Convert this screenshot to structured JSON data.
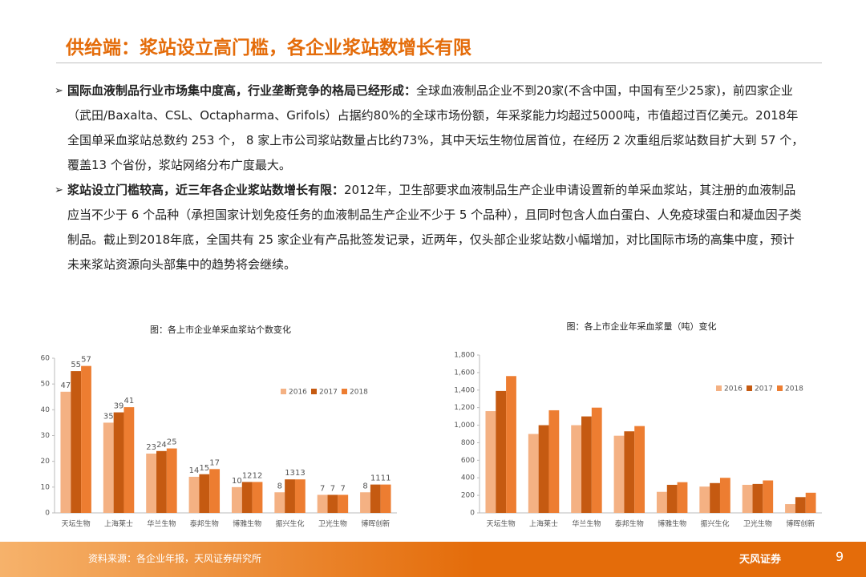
{
  "header": {
    "title": "供给端：浆站设立高门槛，各企业浆站数增长有限"
  },
  "bullets": [
    {
      "bold": "国际血液制品行业市场集中度高，行业垄断竞争的格局已经形成：",
      "text": "全球血液制品企业不到20家(不含中国，中国有至少25家)，前四家企业（武田/Baxalta、CSL、Octapharma、Grifols）占据约80%的全球市场份额，年采浆能力均超过5000吨，市值超过百亿美元。2018年全国单采血浆站总数约 253 个， 8 家上市公司浆站数量占比约73%，其中天坛生物位居首位，在经历 2 次重组后浆站数目扩大到 57 个，覆盖13 个省份，浆站网络分布广度最大。"
    },
    {
      "bold": "浆站设立门槛较高，近三年各企业浆站数增长有限：",
      "text": "2012年，卫生部要求血液制品生产企业申请设置新的单采血浆站，其注册的血液制品应当不少于 6 个品种（承担国家计划免疫任务的血液制品生产企业不少于 5 个品种），且同时包含人血白蛋白、人免疫球蛋白和凝血因子类制品。截止到2018年底，全国共有 25 家企业有产品批签发记录，近两年，仅头部企业浆站数小幅增加，对比国际市场的高集中度，预计未来浆站资源向头部集中的趋势将会继续。"
    }
  ],
  "chart_data": [
    {
      "type": "bar",
      "title": "图：各上市企业单采血浆站个数变化",
      "categories": [
        "天坛生物",
        "上海莱士",
        "华兰生物",
        "泰邦生物",
        "博雅生物",
        "振兴生化",
        "卫光生物",
        "博晖创新"
      ],
      "series": [
        {
          "name": "2016",
          "color": "#f4b183",
          "values": [
            47,
            35,
            23,
            14,
            10,
            8,
            7,
            8
          ]
        },
        {
          "name": "2017",
          "color": "#c55a11",
          "values": [
            55,
            39,
            24,
            15,
            12,
            13,
            7,
            11
          ]
        },
        {
          "name": "2018",
          "color": "#ed7d31",
          "values": [
            57,
            41,
            25,
            17,
            12,
            13,
            7,
            11
          ]
        }
      ],
      "ylim": [
        0,
        60
      ],
      "yticks": [
        0,
        10,
        20,
        30,
        40,
        50,
        60
      ],
      "data_labels": true
    },
    {
      "type": "bar",
      "title": "图：各上市企业年采血浆量（吨）变化",
      "categories": [
        "天坛生物",
        "上海莱士",
        "华兰生物",
        "泰邦生物",
        "博雅生物",
        "振兴生化",
        "卫光生物",
        "博晖创新"
      ],
      "series": [
        {
          "name": "2016",
          "color": "#f4b183",
          "values": [
            1160,
            900,
            1000,
            880,
            240,
            300,
            320,
            100
          ]
        },
        {
          "name": "2017",
          "color": "#c55a11",
          "values": [
            1390,
            1000,
            1100,
            930,
            320,
            340,
            330,
            180
          ]
        },
        {
          "name": "2018",
          "color": "#ed7d31",
          "values": [
            1560,
            1170,
            1200,
            990,
            350,
            400,
            370,
            230
          ]
        }
      ],
      "ylim": [
        0,
        1800
      ],
      "yticks": [
        0,
        200,
        400,
        600,
        800,
        {
          "value": 1000,
          "label": "1,000"
        },
        {
          "value": 1200,
          "label": "1,200"
        },
        {
          "value": 1400,
          "label": "1,400"
        },
        {
          "value": 1600,
          "label": "1,600"
        },
        {
          "value": 1800,
          "label": "1,800"
        }
      ],
      "data_labels": false
    }
  ],
  "footer": {
    "source": "资料来源：各企业年报，天风证券研究所",
    "logo": "天风证券",
    "page": "9"
  }
}
